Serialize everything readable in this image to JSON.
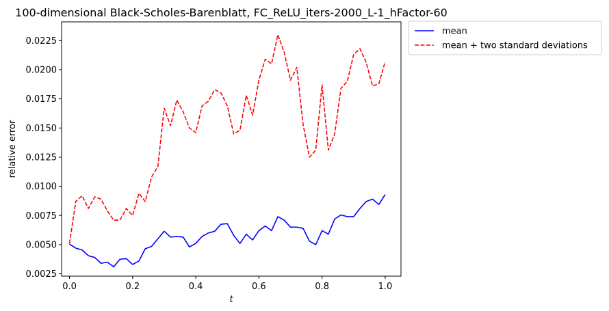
{
  "chart_data": {
    "type": "line",
    "title": "100-dimensional Black-Scholes-Barenblatt, FC_ReLU_iters-2000_L-1_hFactor-60",
    "xlabel": "t",
    "ylabel": "relative error",
    "xlim": [
      -0.025,
      1.05
    ],
    "ylim": [
      0.0023,
      0.0241
    ],
    "xticks": [
      0.0,
      0.2,
      0.4,
      0.6,
      0.8,
      1.0
    ],
    "xtick_labels": [
      "0.0",
      "0.2",
      "0.4",
      "0.6",
      "0.8",
      "1.0"
    ],
    "yticks": [
      0.0025,
      0.005,
      0.0075,
      0.01,
      0.0125,
      0.015,
      0.0175,
      0.02,
      0.0225
    ],
    "ytick_labels": [
      "0.0025",
      "0.0050",
      "0.0075",
      "0.0100",
      "0.0125",
      "0.0150",
      "0.0175",
      "0.0200",
      "0.0225"
    ],
    "grid": false,
    "legend_placement": "outside-upper-right",
    "x": [
      0.0,
      0.02,
      0.04,
      0.06,
      0.08,
      0.1,
      0.12,
      0.14,
      0.16,
      0.18,
      0.2,
      0.22,
      0.24,
      0.26,
      0.28,
      0.3,
      0.32,
      0.34,
      0.36,
      0.38,
      0.4,
      0.42,
      0.44,
      0.46,
      0.48,
      0.5,
      0.52,
      0.54,
      0.56,
      0.58,
      0.6,
      0.62,
      0.64,
      0.66,
      0.68,
      0.7,
      0.72,
      0.74,
      0.76,
      0.78,
      0.8,
      0.82,
      0.84,
      0.86,
      0.88,
      0.9,
      0.92,
      0.94,
      0.96,
      0.98,
      1.0
    ],
    "series": [
      {
        "name": "mean",
        "color": "#0000ff",
        "dash": "solid",
        "values": [
          0.00505,
          0.0047,
          0.00455,
          0.00405,
          0.0039,
          0.0034,
          0.0035,
          0.0031,
          0.00375,
          0.0038,
          0.0033,
          0.0036,
          0.00465,
          0.00485,
          0.0055,
          0.00615,
          0.00565,
          0.0057,
          0.00565,
          0.0048,
          0.0051,
          0.0057,
          0.006,
          0.00615,
          0.00675,
          0.0068,
          0.0058,
          0.0051,
          0.0059,
          0.0054,
          0.0062,
          0.0066,
          0.0062,
          0.0074,
          0.0071,
          0.0065,
          0.0065,
          0.0064,
          0.0053,
          0.005,
          0.0062,
          0.0059,
          0.0072,
          0.00755,
          0.0074,
          0.0074,
          0.0081,
          0.0087,
          0.0089,
          0.00845,
          0.0093
        ]
      },
      {
        "name": "mean + two standard deviations",
        "color": "#ff0000",
        "dash": "dashed",
        "values": [
          0.0051,
          0.0087,
          0.0092,
          0.0081,
          0.0091,
          0.0089,
          0.0079,
          0.0071,
          0.0071,
          0.0081,
          0.0075,
          0.0094,
          0.0087,
          0.0108,
          0.0117,
          0.0167,
          0.0152,
          0.0174,
          0.0164,
          0.015,
          0.0146,
          0.0169,
          0.0173,
          0.0183,
          0.018,
          0.0169,
          0.0145,
          0.0148,
          0.0178,
          0.0161,
          0.0191,
          0.0209,
          0.0205,
          0.023,
          0.0215,
          0.0191,
          0.0202,
          0.0153,
          0.0125,
          0.0131,
          0.0187,
          0.0131,
          0.0145,
          0.0184,
          0.019,
          0.0213,
          0.0218,
          0.0206,
          0.0186,
          0.0188,
          0.0207
        ]
      }
    ]
  }
}
